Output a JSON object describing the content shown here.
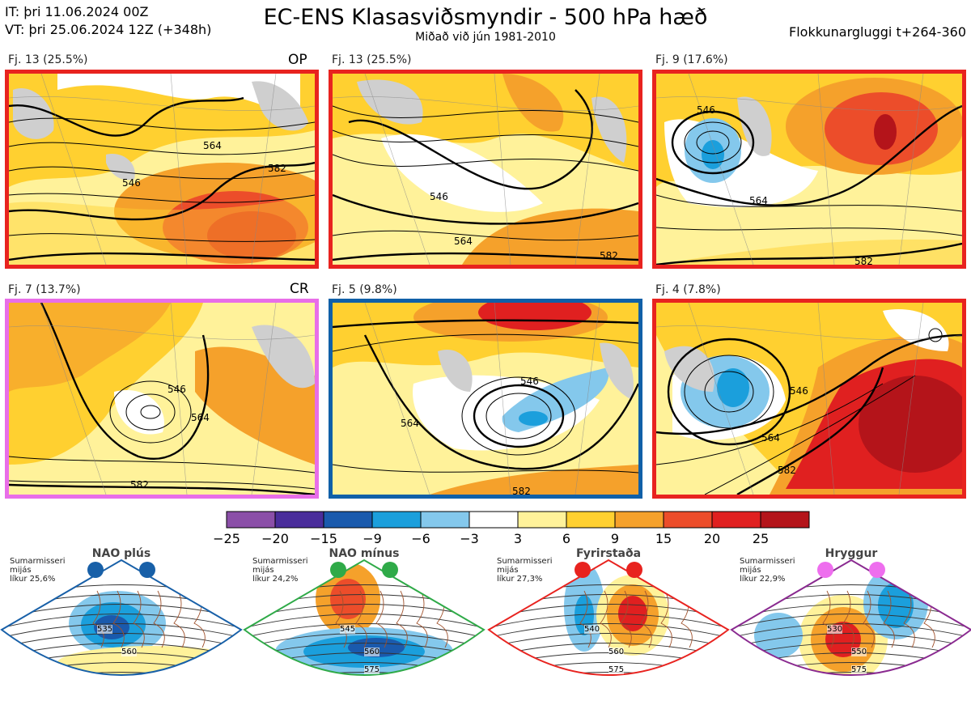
{
  "header": {
    "it_line": "IT: þri 11.06.2024 00Z",
    "vt_line": "VT: þri 25.06.2024 12Z  (+348h)",
    "title": "EC-ENS Klasasviðsmyndir - 500 hPa hæð",
    "subtitle": "Miðað við jún 1981-2010",
    "window": "Flokkunargluggi t+264-360"
  },
  "panels": [
    {
      "label": "Fj. 13 (25.5%)",
      "tag": "OP",
      "border_color": "#e8231f",
      "contours": [
        "546",
        "564",
        "582"
      ]
    },
    {
      "label": "Fj. 13 (25.5%)",
      "tag": "",
      "border_color": "#e8231f",
      "contours": [
        "546",
        "564",
        "582"
      ]
    },
    {
      "label": "Fj. 9 (17.6%)",
      "tag": "",
      "border_color": "#e8231f",
      "contours": [
        "546",
        "564",
        "582"
      ]
    },
    {
      "label": "Fj. 7 (13.7%)",
      "tag": "CR",
      "border_color": "#e86ee8",
      "contours": [
        "546",
        "564",
        "582"
      ]
    },
    {
      "label": "Fj. 5 (9.8%)",
      "tag": "",
      "border_color": "#1060a8",
      "contours": [
        "546",
        "564",
        "582"
      ]
    },
    {
      "label": "Fj. 4 (7.8%)",
      "tag": "",
      "border_color": "#e8231f",
      "contours": [
        "546",
        "564",
        "582"
      ]
    }
  ],
  "colorbar": {
    "labels": [
      "−25",
      "−20",
      "−15",
      "−9",
      "−6",
      "−3",
      "3",
      "6",
      "9",
      "15",
      "20",
      "25"
    ],
    "colors": [
      "#8b4fa8",
      "#4a2d9b",
      "#1a5aad",
      "#1b9fdc",
      "#84c8ec",
      "#ffffff",
      "#fff29a",
      "#ffd030",
      "#f5a12b",
      "#ec4d2a",
      "#e02020",
      "#b4141a"
    ]
  },
  "regimes": [
    {
      "name": "NAO plús",
      "note": [
        "Sumarmisseri",
        "mijás",
        "líkur 25,6%"
      ],
      "color": "#1860a8",
      "dot_color": "#1860a8",
      "contours": [
        "535",
        "560"
      ]
    },
    {
      "name": "NAO mínus",
      "note": [
        "Sumarmisseri",
        "mijás",
        "líkur 24,2%"
      ],
      "color": "#2faa48",
      "dot_color": "#2faa48",
      "contours": [
        "545",
        "560",
        "575"
      ]
    },
    {
      "name": "Fyrirstaða",
      "note": [
        "Sumarmisseri",
        "mijás",
        "líkur 27,3%"
      ],
      "color": "#e8231f",
      "dot_color": "#e8231f",
      "contours": [
        "540",
        "560",
        "575"
      ]
    },
    {
      "name": "Hryggur",
      "note": [
        "Sumarmisseri",
        "mijás",
        "líkur 22,9%"
      ],
      "color": "#8a2a90",
      "dot_color": "#ee6eee",
      "contours": [
        "530",
        "550",
        "575"
      ]
    }
  ]
}
